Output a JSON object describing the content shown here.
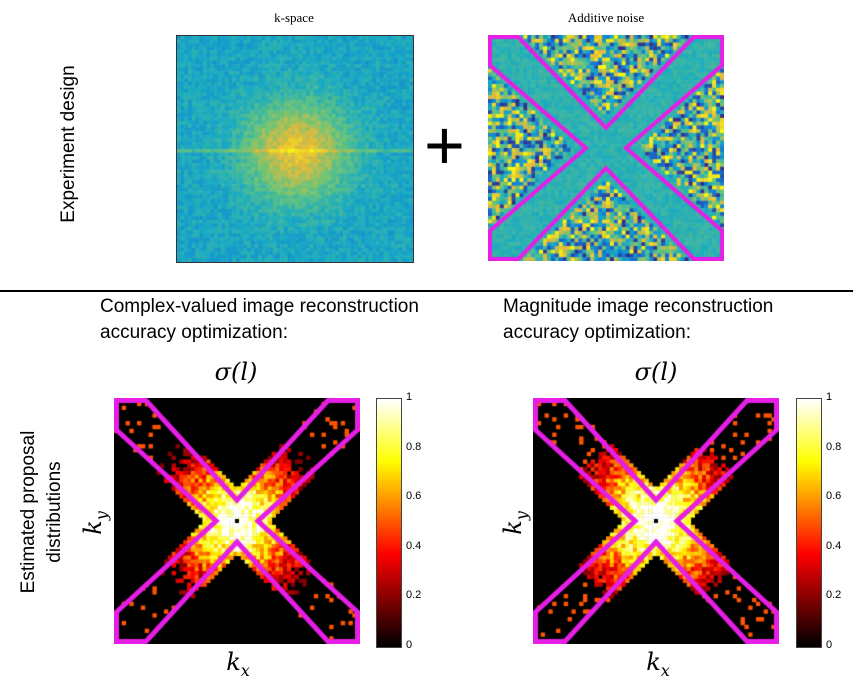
{
  "top": {
    "side_label": "Experiment design",
    "kspace_title": "k-space",
    "noise_title": "Additive noise",
    "plus_symbol": "+"
  },
  "bottom": {
    "side_label_line1": "Estimated proposal",
    "side_label_line2": "distributions",
    "left_heading_line1": "Complex-valued image reconstruction",
    "left_heading_line2": "accuracy optimization:",
    "right_heading_line1": "Magnitude image reconstruction",
    "right_heading_line2": "accuracy optimization:",
    "sigma_label": "σ(l)",
    "ky_label": "k",
    "ky_sub": "y",
    "kx_label": "k",
    "kx_sub": "x"
  },
  "colorbar": {
    "ticks": [
      "1",
      "0.8",
      "0.6",
      "0.4",
      "0.2",
      "0"
    ]
  },
  "colors": {
    "mask": "#e61ee6",
    "background": "#ffffff"
  }
}
